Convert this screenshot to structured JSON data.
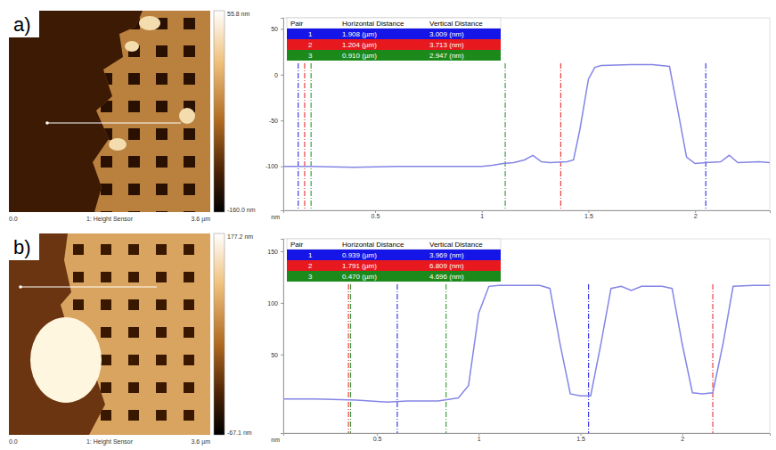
{
  "chart_data": [
    {
      "type": "line",
      "y_label": "nm",
      "color": "#8585e6",
      "x": [
        0.07,
        0.2,
        0.4,
        0.6,
        0.8,
        1.0,
        1.05,
        1.1,
        1.15,
        1.2,
        1.24,
        1.28,
        1.32,
        1.4,
        1.43,
        1.46,
        1.5,
        1.53,
        1.56,
        1.7,
        1.8,
        1.88,
        1.92,
        1.96,
        2.0,
        2.05,
        2.12,
        2.16,
        2.2,
        2.3,
        2.35
      ],
      "values": [
        -100,
        -100,
        -101,
        -100,
        -100,
        -100,
        -99,
        -97,
        -96,
        -93,
        -88,
        -95,
        -96,
        -95,
        -93,
        -60,
        -5,
        8,
        10,
        11,
        11,
        9,
        -40,
        -90,
        -97,
        -96,
        -95,
        -88,
        -96,
        -95,
        -96
      ],
      "xlim": [
        0.07,
        2.35
      ],
      "ylim": [
        -148,
        62
      ],
      "xticks": [
        0.5,
        1,
        1.5,
        2
      ],
      "yticks": [
        50,
        0,
        -50,
        -100
      ],
      "cursors": [
        {
          "color": "#1515e8",
          "x": [
            0.14,
            2.05
          ]
        },
        {
          "color": "#e8191e",
          "x": [
            0.17,
            1.37
          ]
        },
        {
          "color": "#1b8a1b",
          "x": [
            0.2,
            1.11
          ]
        }
      ]
    },
    {
      "type": "line",
      "y_label": "nm",
      "color": "#8585e6",
      "x": [
        0.04,
        0.2,
        0.4,
        0.55,
        0.65,
        0.8,
        0.9,
        0.95,
        1.0,
        1.05,
        1.1,
        1.2,
        1.3,
        1.35,
        1.4,
        1.45,
        1.5,
        1.55,
        1.6,
        1.65,
        1.7,
        1.75,
        1.8,
        1.9,
        1.95,
        2.0,
        2.05,
        2.1,
        2.15,
        2.2,
        2.25,
        2.35,
        2.43
      ],
      "values": [
        7,
        7,
        6,
        4,
        5,
        5,
        8,
        20,
        90,
        116,
        117,
        117,
        117,
        114,
        60,
        12,
        10,
        10,
        60,
        114,
        116,
        112,
        116,
        116,
        114,
        60,
        13,
        12,
        13,
        60,
        116,
        117,
        117
      ],
      "xlim": [
        0.04,
        2.43
      ],
      "ylim": [
        -26,
        162
      ],
      "xticks": [
        0.5,
        1,
        1.5,
        2
      ],
      "yticks": [
        150,
        100,
        50
      ],
      "cursors": [
        {
          "color": "#1515e8",
          "x": [
            0.6,
            1.54
          ]
        },
        {
          "color": "#e8191e",
          "x": [
            0.36,
            2.15
          ]
        },
        {
          "color": "#1b8a1b",
          "x": [
            0.37,
            0.84
          ]
        }
      ]
    }
  ],
  "panels": [
    {
      "label": "a)",
      "image": {
        "colorbar_max": "55.8 nm",
        "colorbar_min": "-160.0 nm",
        "scale_start": "0.0",
        "channel": "1: Height Sensor",
        "scale_end": "3.6 µm"
      },
      "table": {
        "header": [
          "Pair",
          "Horizontal Distance",
          "Vertical Distance"
        ],
        "rows": [
          [
            "1",
            "1.908 (µm)",
            "3.009 (nm)"
          ],
          [
            "2",
            "1.204 (µm)",
            "3.713 (nm)"
          ],
          [
            "3",
            "0.910 (µm)",
            "2.947 (nm)"
          ]
        ]
      }
    },
    {
      "label": "b)",
      "image": {
        "colorbar_max": "177.2 nm",
        "colorbar_min": "-67.1 nm",
        "scale_start": "0.0",
        "channel": "1: Height Sensor",
        "scale_end": "3.6 µm"
      },
      "table": {
        "header": [
          "Pair",
          "Horizontal Distance",
          "Vertical Distance"
        ],
        "rows": [
          [
            "1",
            "0.939 (µm)",
            "3.969 (nm)"
          ],
          [
            "2",
            "1.791 (µm)",
            "6.809 (nm)"
          ],
          [
            "3",
            "0.470 (µm)",
            "4.696 (nm)"
          ]
        ]
      }
    }
  ]
}
